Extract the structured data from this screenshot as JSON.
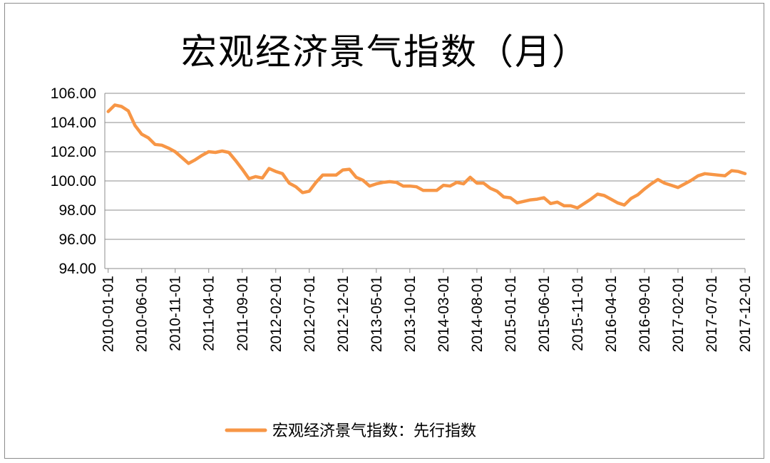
{
  "chart_data": {
    "type": "line",
    "title": "宏观经济景气指数（月）",
    "xlabel": "",
    "ylabel": "",
    "ylim": [
      94,
      106
    ],
    "y_ticks": [
      "94.00",
      "96.00",
      "98.00",
      "100.00",
      "102.00",
      "104.00",
      "106.00"
    ],
    "x_tick_labels": [
      "2010-01-01",
      "2010-06-01",
      "2010-11-01",
      "2011-04-01",
      "2011-09-01",
      "2012-02-01",
      "2012-07-01",
      "2012-12-01",
      "2013-05-01",
      "2013-10-01",
      "2014-03-01",
      "2014-08-01",
      "2015-01-01",
      "2015-06-01",
      "2015-11-01",
      "2016-04-01",
      "2016-09-01",
      "2017-02-01",
      "2017-07-01",
      "2017-12-01"
    ],
    "grid": true,
    "legend_position": "bottom",
    "series": [
      {
        "name": "宏观经济景气指数：先行指数",
        "color": "#F79646",
        "x": [
          "2010-01",
          "2010-02",
          "2010-03",
          "2010-04",
          "2010-05",
          "2010-06",
          "2010-07",
          "2010-08",
          "2010-09",
          "2010-10",
          "2010-11",
          "2010-12",
          "2011-01",
          "2011-02",
          "2011-03",
          "2011-04",
          "2011-05",
          "2011-06",
          "2011-07",
          "2011-08",
          "2011-09",
          "2011-10",
          "2011-11",
          "2011-12",
          "2012-01",
          "2012-02",
          "2012-03",
          "2012-04",
          "2012-05",
          "2012-06",
          "2012-07",
          "2012-08",
          "2012-09",
          "2012-10",
          "2012-11",
          "2012-12",
          "2013-01",
          "2013-02",
          "2013-03",
          "2013-04",
          "2013-05",
          "2013-06",
          "2013-07",
          "2013-08",
          "2013-09",
          "2013-10",
          "2013-11",
          "2013-12",
          "2014-01",
          "2014-02",
          "2014-03",
          "2014-04",
          "2014-05",
          "2014-06",
          "2014-07",
          "2014-08",
          "2014-09",
          "2014-10",
          "2014-11",
          "2014-12",
          "2015-01",
          "2015-02",
          "2015-03",
          "2015-04",
          "2015-05",
          "2015-06",
          "2015-07",
          "2015-08",
          "2015-09",
          "2015-10",
          "2015-11",
          "2015-12",
          "2016-01",
          "2016-02",
          "2016-03",
          "2016-04",
          "2016-05",
          "2016-06",
          "2016-07",
          "2016-08",
          "2016-09",
          "2016-10",
          "2016-11",
          "2016-12",
          "2017-01",
          "2017-02",
          "2017-03",
          "2017-04",
          "2017-05",
          "2017-06",
          "2017-07",
          "2017-08",
          "2017-09",
          "2017-10",
          "2017-11",
          "2017-12"
        ],
        "values": [
          104.75,
          105.2,
          105.1,
          104.8,
          103.8,
          103.2,
          102.95,
          102.5,
          102.45,
          102.25,
          102.0,
          101.6,
          101.2,
          101.45,
          101.75,
          102.0,
          101.95,
          102.05,
          101.95,
          101.4,
          100.8,
          100.15,
          100.3,
          100.2,
          100.85,
          100.65,
          100.5,
          99.85,
          99.6,
          99.2,
          99.3,
          99.9,
          100.4,
          100.4,
          100.4,
          100.75,
          100.8,
          100.25,
          100.05,
          99.65,
          99.8,
          99.9,
          99.95,
          99.9,
          99.65,
          99.65,
          99.6,
          99.35,
          99.35,
          99.35,
          99.7,
          99.65,
          99.9,
          99.8,
          100.25,
          99.85,
          99.85,
          99.5,
          99.3,
          98.9,
          98.85,
          98.5,
          98.6,
          98.7,
          98.75,
          98.85,
          98.45,
          98.55,
          98.3,
          98.3,
          98.15,
          98.45,
          98.75,
          99.1,
          99.0,
          98.75,
          98.5,
          98.35,
          98.8,
          99.05,
          99.45,
          99.8,
          100.1,
          99.85,
          99.7,
          99.55,
          99.8,
          100.05,
          100.35,
          100.5,
          100.45,
          100.4,
          100.35,
          100.7,
          100.65,
          100.5
        ]
      }
    ]
  }
}
